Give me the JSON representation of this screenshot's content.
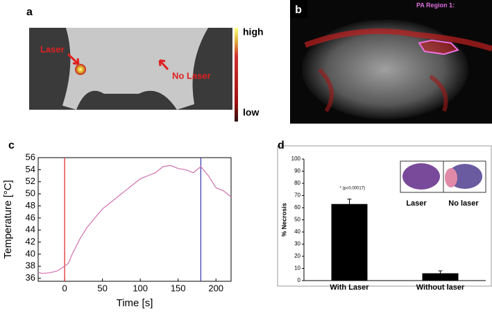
{
  "panels": {
    "a": {
      "label": "a",
      "laser": "Laser",
      "no_laser": "No Laser",
      "colorbar_high": "high",
      "colorbar_low": "low"
    },
    "b": {
      "label": "b",
      "region": "PA Region 1:"
    },
    "c": {
      "label": "c"
    },
    "d": {
      "label": "d",
      "inset_laser": "Laser",
      "inset_no_laser": "No laser"
    }
  },
  "chart_data": [
    {
      "type": "line",
      "xlabel": "Time [s]",
      "ylabel": "Temperature [°C]",
      "x": [
        -35,
        -30,
        -20,
        -10,
        0,
        5,
        10,
        20,
        30,
        40,
        50,
        60,
        70,
        80,
        90,
        100,
        110,
        120,
        130,
        140,
        150,
        160,
        170,
        180,
        190,
        200,
        210,
        220
      ],
      "series": [
        {
          "color": "#d070b0",
          "values": [
            37,
            36.8,
            36.9,
            37.2,
            38,
            38.5,
            40,
            42.5,
            44.5,
            46,
            47.5,
            48.5,
            49.5,
            50.5,
            51.5,
            52.5,
            53,
            53.5,
            54.5,
            54.7,
            54.2,
            54,
            53.5,
            54.5,
            53,
            51,
            50.5,
            49.5
          ]
        }
      ],
      "vlines": [
        {
          "value": 0,
          "color": "#e03030"
        },
        {
          "value": 180,
          "color": "#4040b0"
        }
      ],
      "xlim": [
        -35,
        220
      ],
      "xticks": [
        0,
        50,
        100,
        150,
        200
      ],
      "ylim": [
        35.5,
        56
      ],
      "yticks": [
        36,
        38,
        40,
        42,
        44,
        46,
        48,
        50,
        52,
        54,
        56
      ]
    },
    {
      "type": "bar",
      "ylabel": "% Necrosis",
      "categories": [
        "With Laser",
        "Without laser"
      ],
      "values": [
        63,
        6
      ],
      "errors": [
        4,
        2
      ],
      "color": "#000000",
      "annotation": "* (p=0.00017)",
      "ylim": [
        0,
        100
      ],
      "yticks": [
        0,
        10,
        20,
        30,
        40,
        50,
        60,
        70,
        80,
        90,
        100
      ]
    }
  ]
}
